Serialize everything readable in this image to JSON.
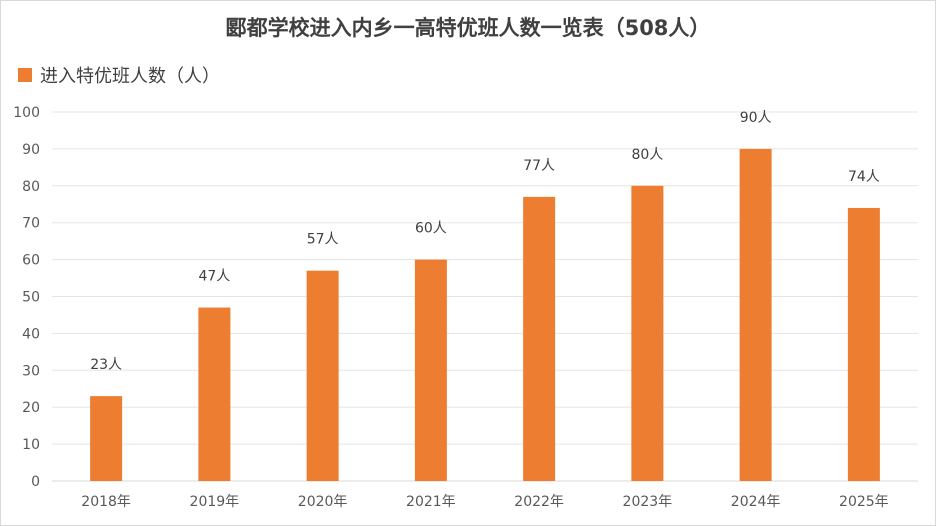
{
  "chart_data": {
    "type": "bar",
    "title": "郾都学校进入内乡一高特优班人数一览表（508人）",
    "categories": [
      "2018年",
      "2019年",
      "2020年",
      "2021年",
      "2022年",
      "2023年",
      "2024年",
      "2025年"
    ],
    "series": [
      {
        "name": "进入特优班人数（人）",
        "values": [
          23,
          47,
          57,
          60,
          77,
          80,
          90,
          74
        ],
        "data_labels": [
          "23人",
          "47人",
          "57人",
          "60人",
          "77人",
          "80人",
          "90人",
          "74人"
        ],
        "color": "#ed7d31"
      }
    ],
    "ylim": [
      0,
      100
    ],
    "yticks": [
      0,
      10,
      20,
      30,
      40,
      50,
      60,
      70,
      80,
      90,
      100
    ],
    "grid": true,
    "legend_position": "top-left",
    "xlabel": "",
    "ylabel": ""
  }
}
